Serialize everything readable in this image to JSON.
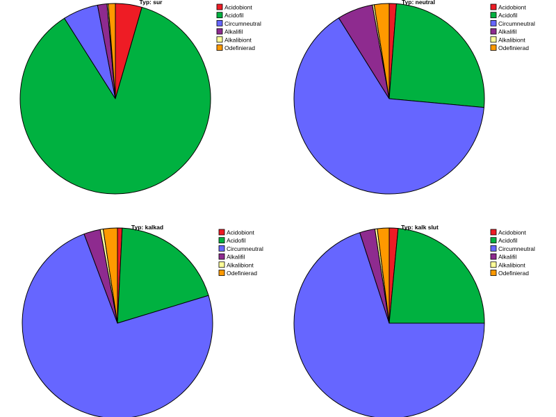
{
  "legend_labels": [
    "Acidobiont",
    "Acidofil",
    "Circumneutral",
    "Alkalifil",
    "Alkalibiont",
    "Odefinierad"
  ],
  "series_colors": [
    "#ee1c25",
    "#00b140",
    "#6666ff",
    "#8e2b8f",
    "#ffff99",
    "#ff9900"
  ],
  "chart_data": [
    {
      "type": "pie",
      "title": "Typ: sur",
      "labels": [
        "Acidobiont",
        "Acidofil",
        "Circumneutral",
        "Alkalifil",
        "Alkalibiont",
        "Odefinierad"
      ],
      "values": [
        4.5,
        86.5,
        6.0,
        1.6,
        0.2,
        1.2
      ]
    },
    {
      "type": "pie",
      "title": "Typ: neutral",
      "labels": [
        "Acidobiont",
        "Acidofil",
        "Circumneutral",
        "Alkalifil",
        "Alkalibiont",
        "Odefinierad"
      ],
      "values": [
        1.2,
        25.0,
        64.0,
        6.0,
        0.3,
        2.5
      ]
    },
    {
      "type": "pie",
      "title": "Typ: kalkad",
      "labels": [
        "Acidobiont",
        "Acidofil",
        "Circumneutral",
        "Alkalifil",
        "Alkalibiont",
        "Odefinierad"
      ],
      "values": [
        0.8,
        19.5,
        74.0,
        2.8,
        0.5,
        2.4
      ]
    },
    {
      "type": "pie",
      "title": "Typ: kalk slut",
      "labels": [
        "Acidobiont",
        "Acidofil",
        "Circumneutral",
        "Alkalifil",
        "Alkalibiont",
        "Odefinierad"
      ],
      "values": [
        1.5,
        23.5,
        70.0,
        2.6,
        0.4,
        2.0
      ]
    }
  ]
}
